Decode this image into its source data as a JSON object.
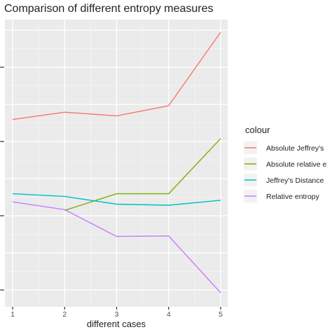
{
  "chart_data": {
    "type": "line",
    "title": "Comparison of different entropy measures",
    "xlabel": "different cases",
    "ylabel": "",
    "x": [
      1,
      2,
      3,
      4,
      5
    ],
    "x_tick_labels": [
      "1",
      "2",
      "3",
      "4",
      "5"
    ],
    "xlim": [
      0.95,
      5.05
    ],
    "y_axis": "unlabeled",
    "ylim": [
      0,
      1
    ],
    "grid": true,
    "legend": {
      "title": "colour",
      "placement": "right"
    },
    "series": [
      {
        "name": "Absolute Jeffrey's",
        "color": "#F8766D",
        "values": [
          0.665,
          0.693,
          0.679,
          0.718,
          1.0
        ]
      },
      {
        "name": "Absolute relative e",
        "color": "#7CAE00",
        "values": [
          null,
          0.316,
          0.38,
          0.38,
          0.592
        ]
      },
      {
        "name": "Jeffrey's Distance",
        "color": "#00BFC4",
        "values": [
          0.38,
          0.37,
          0.34,
          0.336,
          0.355
        ]
      },
      {
        "name": "Relative entropy",
        "color": "#C77CFF",
        "values": [
          0.349,
          0.319,
          0.216,
          0.218,
          0.0
        ]
      }
    ]
  }
}
